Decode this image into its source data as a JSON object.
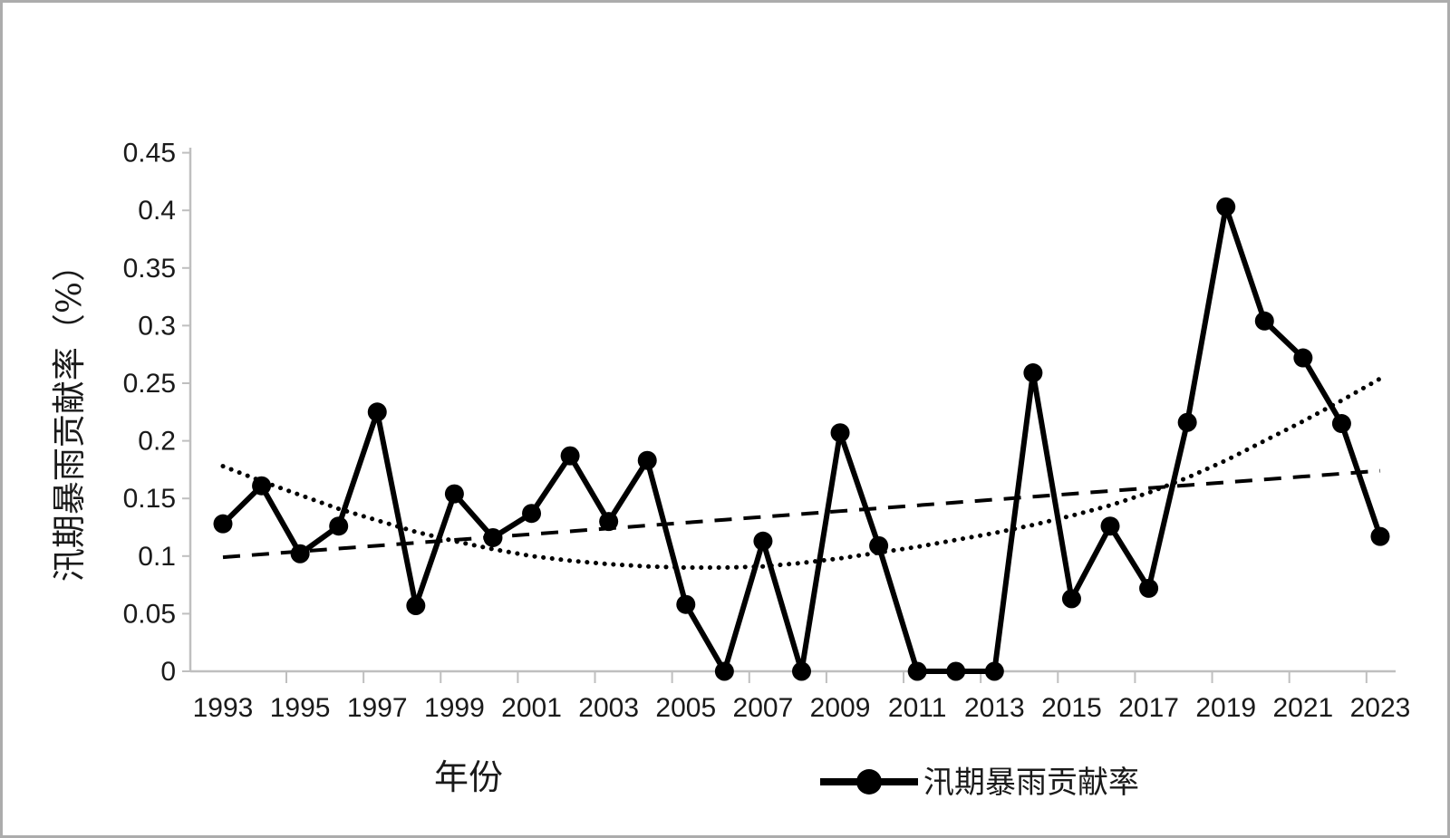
{
  "figure": {
    "background": "#ffffff",
    "border_color": "#acacac",
    "axis_color": "#bfbfbf",
    "text_color": "#1a1a1a",
    "series_color": "#000000"
  },
  "axes": {
    "y_title": "汛期暴雨贡献率（%）",
    "x_title": "年份"
  },
  "legend": {
    "label": "汛期暴雨贡献率",
    "marker": "filled-circle-on-line",
    "position": "bottom-right"
  },
  "chart_data": {
    "type": "line",
    "title": "",
    "xlabel": "年份",
    "ylabel": "汛期暴雨贡献率（%）",
    "ylim": [
      0,
      0.45
    ],
    "ytick_step": 0.05,
    "ytick_labels": [
      "0",
      "0.05",
      "0.1",
      "0.15",
      "0.2",
      "0.25",
      "0.3",
      "0.35",
      "0.4",
      "0.45"
    ],
    "xtick_labels": [
      "1993",
      "1995",
      "1997",
      "1999",
      "2001",
      "2003",
      "2005",
      "2007",
      "2009",
      "2011",
      "2013",
      "2015",
      "2017",
      "2019",
      "2021",
      "2023"
    ],
    "grid": false,
    "legend_position": "bottom-right",
    "x": [
      1993,
      1994,
      1995,
      1996,
      1997,
      1998,
      1999,
      2000,
      2001,
      2002,
      2003,
      2004,
      2005,
      2006,
      2007,
      2008,
      2009,
      2010,
      2011,
      2012,
      2013,
      2014,
      2015,
      2016,
      2017,
      2018,
      2019,
      2020,
      2021,
      2022,
      2023
    ],
    "series": [
      {
        "name": "汛期暴雨贡献率",
        "style": "solid-line-filled-circle-markers",
        "values": [
          0.128,
          0.161,
          0.102,
          0.126,
          0.225,
          0.057,
          0.154,
          0.116,
          0.137,
          0.187,
          0.13,
          0.183,
          0.058,
          0.0,
          0.113,
          0.0,
          0.207,
          0.109,
          0.0,
          0.0,
          0.0,
          0.259,
          0.063,
          0.126,
          0.072,
          0.216,
          0.403,
          0.304,
          0.272,
          0.215,
          0.117
        ]
      },
      {
        "name": "linear-trend",
        "style": "dashed-no-markers",
        "values": [
          0.099,
          0.1015,
          0.104,
          0.1065,
          0.109,
          0.1115,
          0.114,
          0.1165,
          0.119,
          0.1215,
          0.124,
          0.1265,
          0.129,
          0.1315,
          0.134,
          0.1365,
          0.139,
          0.1415,
          0.144,
          0.1465,
          0.149,
          0.1515,
          0.154,
          0.1565,
          0.159,
          0.1615,
          0.164,
          0.1665,
          0.169,
          0.1715,
          0.174
        ]
      },
      {
        "name": "polynomial-trend",
        "style": "dotted-no-markers",
        "values": [
          0.178,
          0.165,
          0.153,
          0.141,
          0.131,
          0.121,
          0.113,
          0.106,
          0.1,
          0.096,
          0.093,
          0.091,
          0.09,
          0.09,
          0.091,
          0.094,
          0.098,
          0.103,
          0.108,
          0.114,
          0.12,
          0.127,
          0.135,
          0.144,
          0.155,
          0.168,
          0.183,
          0.2,
          0.217,
          0.235,
          0.254
        ]
      }
    ]
  }
}
